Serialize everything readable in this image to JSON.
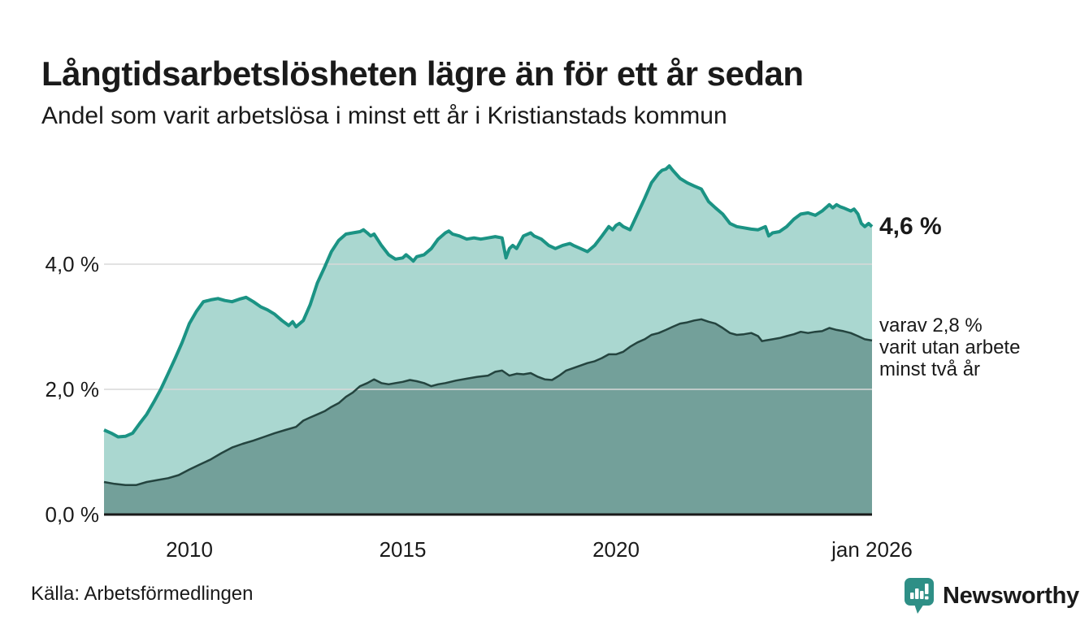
{
  "chart_data": {
    "type": "area",
    "title": "Långtidsarbetslösheten lägre än för ett år sedan",
    "subtitle": "Andel som varit arbetslösa i minst ett år i Kristianstads kommun",
    "source": "Källa: Arbetsförmedlingen",
    "x_range": [
      2008,
      2026
    ],
    "ylim": [
      0,
      5.8
    ],
    "grid_on": true,
    "grid_color": "#d9d9d9",
    "axis_color": "#1a1a1a",
    "text_color": "#1a1a1a",
    "y_ticks": [
      {
        "v": 0,
        "label": "0,0 %"
      },
      {
        "v": 2,
        "label": "2,0 %"
      },
      {
        "v": 4,
        "label": "4,0 %"
      }
    ],
    "x_ticks": [
      {
        "v": 2010,
        "label": "2010"
      },
      {
        "v": 2015,
        "label": "2015"
      },
      {
        "v": 2020,
        "label": "2020"
      },
      {
        "v": 2026,
        "label": "jan 2026"
      }
    ],
    "series": [
      {
        "end_label": "4,6 %",
        "end_value": 4.6,
        "line_color": "#1b9384",
        "fill_color": "#aad7d0",
        "line_width": 4,
        "points": [
          [
            2008.0,
            1.35
          ],
          [
            2008.17,
            1.3
          ],
          [
            2008.33,
            1.24
          ],
          [
            2008.5,
            1.25
          ],
          [
            2008.67,
            1.3
          ],
          [
            2008.83,
            1.45
          ],
          [
            2009.0,
            1.6
          ],
          [
            2009.17,
            1.8
          ],
          [
            2009.33,
            2.0
          ],
          [
            2009.5,
            2.25
          ],
          [
            2009.67,
            2.5
          ],
          [
            2009.83,
            2.75
          ],
          [
            2010.0,
            3.05
          ],
          [
            2010.17,
            3.25
          ],
          [
            2010.33,
            3.4
          ],
          [
            2010.5,
            3.43
          ],
          [
            2010.67,
            3.45
          ],
          [
            2010.83,
            3.42
          ],
          [
            2011.0,
            3.4
          ],
          [
            2011.17,
            3.44
          ],
          [
            2011.33,
            3.47
          ],
          [
            2011.5,
            3.4
          ],
          [
            2011.67,
            3.32
          ],
          [
            2011.83,
            3.27
          ],
          [
            2012.0,
            3.2
          ],
          [
            2012.17,
            3.1
          ],
          [
            2012.33,
            3.02
          ],
          [
            2012.42,
            3.08
          ],
          [
            2012.5,
            3.0
          ],
          [
            2012.67,
            3.1
          ],
          [
            2012.83,
            3.35
          ],
          [
            2013.0,
            3.7
          ],
          [
            2013.17,
            3.95
          ],
          [
            2013.33,
            4.2
          ],
          [
            2013.5,
            4.38
          ],
          [
            2013.67,
            4.48
          ],
          [
            2013.83,
            4.5
          ],
          [
            2014.0,
            4.52
          ],
          [
            2014.08,
            4.55
          ],
          [
            2014.17,
            4.5
          ],
          [
            2014.25,
            4.45
          ],
          [
            2014.33,
            4.48
          ],
          [
            2014.5,
            4.3
          ],
          [
            2014.67,
            4.15
          ],
          [
            2014.83,
            4.08
          ],
          [
            2015.0,
            4.1
          ],
          [
            2015.08,
            4.15
          ],
          [
            2015.17,
            4.1
          ],
          [
            2015.25,
            4.05
          ],
          [
            2015.33,
            4.12
          ],
          [
            2015.5,
            4.15
          ],
          [
            2015.67,
            4.25
          ],
          [
            2015.83,
            4.4
          ],
          [
            2016.0,
            4.5
          ],
          [
            2016.08,
            4.53
          ],
          [
            2016.17,
            4.48
          ],
          [
            2016.33,
            4.45
          ],
          [
            2016.5,
            4.4
          ],
          [
            2016.67,
            4.42
          ],
          [
            2016.83,
            4.4
          ],
          [
            2017.0,
            4.42
          ],
          [
            2017.17,
            4.44
          ],
          [
            2017.33,
            4.42
          ],
          [
            2017.42,
            4.1
          ],
          [
            2017.5,
            4.25
          ],
          [
            2017.58,
            4.3
          ],
          [
            2017.67,
            4.25
          ],
          [
            2017.75,
            4.35
          ],
          [
            2017.83,
            4.45
          ],
          [
            2018.0,
            4.5
          ],
          [
            2018.08,
            4.45
          ],
          [
            2018.25,
            4.4
          ],
          [
            2018.42,
            4.3
          ],
          [
            2018.58,
            4.25
          ],
          [
            2018.75,
            4.3
          ],
          [
            2018.92,
            4.33
          ],
          [
            2019.0,
            4.3
          ],
          [
            2019.17,
            4.25
          ],
          [
            2019.33,
            4.2
          ],
          [
            2019.5,
            4.3
          ],
          [
            2019.67,
            4.45
          ],
          [
            2019.83,
            4.6
          ],
          [
            2019.92,
            4.55
          ],
          [
            2020.0,
            4.62
          ],
          [
            2020.08,
            4.65
          ],
          [
            2020.17,
            4.6
          ],
          [
            2020.33,
            4.55
          ],
          [
            2020.5,
            4.8
          ],
          [
            2020.67,
            5.05
          ],
          [
            2020.83,
            5.3
          ],
          [
            2021.0,
            5.45
          ],
          [
            2021.08,
            5.5
          ],
          [
            2021.17,
            5.52
          ],
          [
            2021.25,
            5.57
          ],
          [
            2021.33,
            5.5
          ],
          [
            2021.5,
            5.37
          ],
          [
            2021.67,
            5.3
          ],
          [
            2021.83,
            5.25
          ],
          [
            2022.0,
            5.2
          ],
          [
            2022.17,
            5.0
          ],
          [
            2022.33,
            4.9
          ],
          [
            2022.5,
            4.8
          ],
          [
            2022.67,
            4.65
          ],
          [
            2022.83,
            4.6
          ],
          [
            2023.0,
            4.58
          ],
          [
            2023.17,
            4.56
          ],
          [
            2023.33,
            4.55
          ],
          [
            2023.5,
            4.6
          ],
          [
            2023.58,
            4.45
          ],
          [
            2023.67,
            4.5
          ],
          [
            2023.83,
            4.52
          ],
          [
            2024.0,
            4.6
          ],
          [
            2024.17,
            4.72
          ],
          [
            2024.33,
            4.8
          ],
          [
            2024.5,
            4.82
          ],
          [
            2024.67,
            4.78
          ],
          [
            2024.83,
            4.85
          ],
          [
            2025.0,
            4.95
          ],
          [
            2025.08,
            4.9
          ],
          [
            2025.17,
            4.95
          ],
          [
            2025.25,
            4.92
          ],
          [
            2025.33,
            4.9
          ],
          [
            2025.5,
            4.85
          ],
          [
            2025.58,
            4.88
          ],
          [
            2025.67,
            4.8
          ],
          [
            2025.75,
            4.65
          ],
          [
            2025.83,
            4.6
          ],
          [
            2025.92,
            4.65
          ],
          [
            2026.0,
            4.6
          ]
        ]
      },
      {
        "annotation_lines": [
          "varav 2,8 %",
          "varit utan arbete",
          "minst två år"
        ],
        "end_value": 2.8,
        "line_color": "#24443f",
        "fill_color": "#73a09a",
        "line_width": 2.5,
        "points": [
          [
            2008.0,
            0.52
          ],
          [
            2008.25,
            0.49
          ],
          [
            2008.5,
            0.47
          ],
          [
            2008.75,
            0.47
          ],
          [
            2009.0,
            0.52
          ],
          [
            2009.25,
            0.55
          ],
          [
            2009.5,
            0.58
          ],
          [
            2009.75,
            0.63
          ],
          [
            2010.0,
            0.72
          ],
          [
            2010.25,
            0.8
          ],
          [
            2010.5,
            0.88
          ],
          [
            2010.75,
            0.98
          ],
          [
            2011.0,
            1.07
          ],
          [
            2011.25,
            1.13
          ],
          [
            2011.5,
            1.18
          ],
          [
            2011.75,
            1.24
          ],
          [
            2012.0,
            1.3
          ],
          [
            2012.25,
            1.35
          ],
          [
            2012.5,
            1.4
          ],
          [
            2012.67,
            1.5
          ],
          [
            2012.83,
            1.55
          ],
          [
            2013.0,
            1.6
          ],
          [
            2013.17,
            1.65
          ],
          [
            2013.33,
            1.72
          ],
          [
            2013.5,
            1.78
          ],
          [
            2013.67,
            1.88
          ],
          [
            2013.83,
            1.95
          ],
          [
            2014.0,
            2.05
          ],
          [
            2014.17,
            2.1
          ],
          [
            2014.33,
            2.16
          ],
          [
            2014.5,
            2.1
          ],
          [
            2014.67,
            2.08
          ],
          [
            2014.83,
            2.1
          ],
          [
            2015.0,
            2.12
          ],
          [
            2015.17,
            2.15
          ],
          [
            2015.33,
            2.13
          ],
          [
            2015.5,
            2.1
          ],
          [
            2015.67,
            2.05
          ],
          [
            2015.83,
            2.08
          ],
          [
            2016.0,
            2.1
          ],
          [
            2016.25,
            2.14
          ],
          [
            2016.5,
            2.17
          ],
          [
            2016.75,
            2.2
          ],
          [
            2017.0,
            2.22
          ],
          [
            2017.17,
            2.28
          ],
          [
            2017.33,
            2.3
          ],
          [
            2017.5,
            2.22
          ],
          [
            2017.67,
            2.25
          ],
          [
            2017.83,
            2.24
          ],
          [
            2018.0,
            2.26
          ],
          [
            2018.17,
            2.2
          ],
          [
            2018.33,
            2.16
          ],
          [
            2018.5,
            2.15
          ],
          [
            2018.67,
            2.22
          ],
          [
            2018.83,
            2.3
          ],
          [
            2019.0,
            2.34
          ],
          [
            2019.17,
            2.38
          ],
          [
            2019.33,
            2.42
          ],
          [
            2019.5,
            2.45
          ],
          [
            2019.67,
            2.5
          ],
          [
            2019.83,
            2.56
          ],
          [
            2020.0,
            2.56
          ],
          [
            2020.17,
            2.6
          ],
          [
            2020.33,
            2.68
          ],
          [
            2020.5,
            2.75
          ],
          [
            2020.67,
            2.8
          ],
          [
            2020.83,
            2.87
          ],
          [
            2021.0,
            2.9
          ],
          [
            2021.17,
            2.95
          ],
          [
            2021.33,
            3.0
          ],
          [
            2021.5,
            3.05
          ],
          [
            2021.67,
            3.07
          ],
          [
            2021.83,
            3.1
          ],
          [
            2022.0,
            3.12
          ],
          [
            2022.17,
            3.08
          ],
          [
            2022.33,
            3.05
          ],
          [
            2022.5,
            2.98
          ],
          [
            2022.67,
            2.9
          ],
          [
            2022.83,
            2.87
          ],
          [
            2023.0,
            2.88
          ],
          [
            2023.17,
            2.9
          ],
          [
            2023.33,
            2.85
          ],
          [
            2023.42,
            2.77
          ],
          [
            2023.5,
            2.78
          ],
          [
            2023.67,
            2.8
          ],
          [
            2023.83,
            2.82
          ],
          [
            2024.0,
            2.85
          ],
          [
            2024.17,
            2.88
          ],
          [
            2024.33,
            2.92
          ],
          [
            2024.5,
            2.9
          ],
          [
            2024.67,
            2.92
          ],
          [
            2024.83,
            2.93
          ],
          [
            2025.0,
            2.98
          ],
          [
            2025.17,
            2.95
          ],
          [
            2025.33,
            2.93
          ],
          [
            2025.5,
            2.9
          ],
          [
            2025.67,
            2.85
          ],
          [
            2025.83,
            2.8
          ],
          [
            2026.0,
            2.78
          ]
        ]
      }
    ]
  },
  "logo": {
    "brand": "Newsworthy",
    "color": "#2e8f86"
  }
}
